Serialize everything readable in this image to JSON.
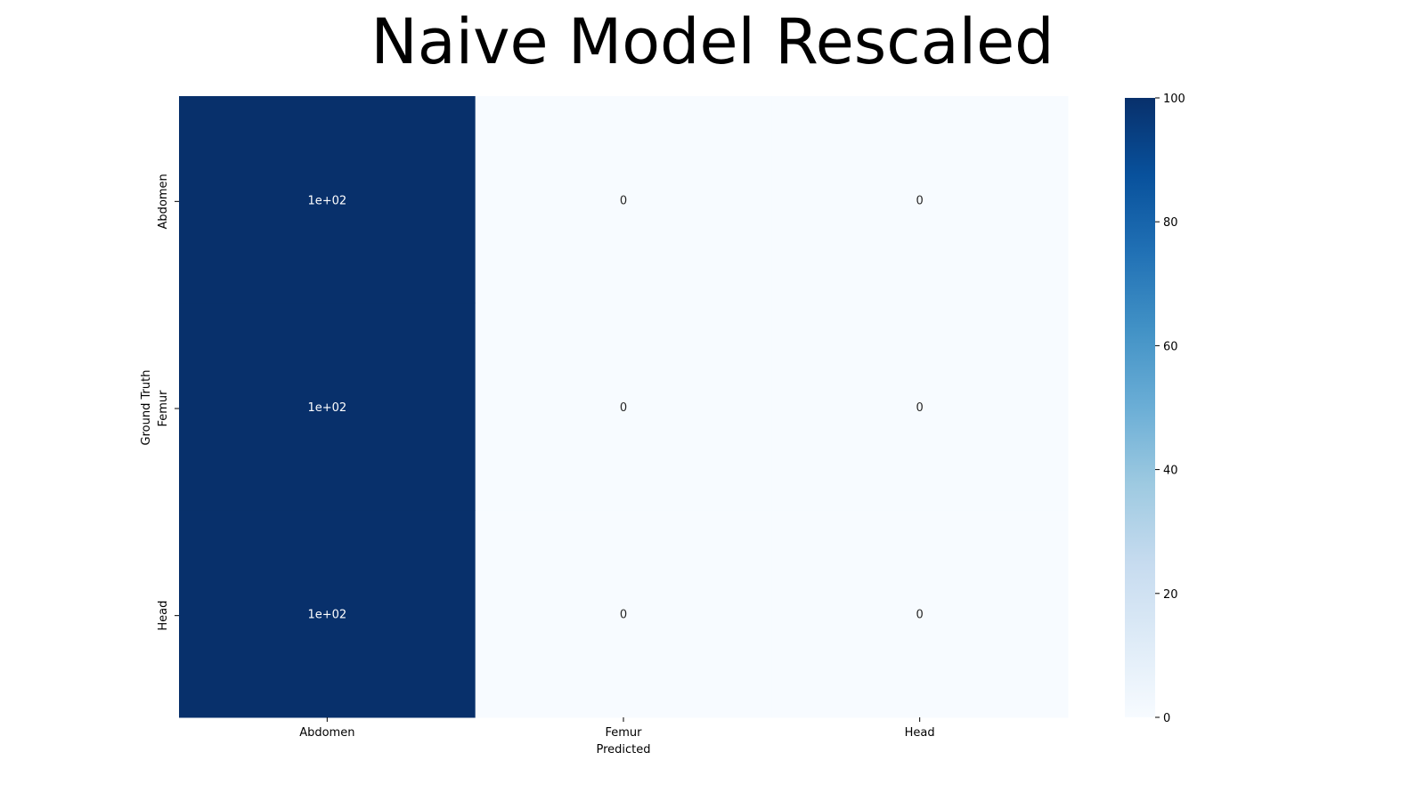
{
  "chart_data": {
    "type": "heatmap",
    "title": "Naive Model Rescaled",
    "xlabel": "Predicted",
    "ylabel": "Ground Truth",
    "x_categories": [
      "Abdomen",
      "Femur",
      "Head"
    ],
    "y_categories": [
      "Abdomen",
      "Femur",
      "Head"
    ],
    "values": [
      [
        100,
        0,
        0
      ],
      [
        100,
        0,
        0
      ],
      [
        100,
        0,
        0
      ]
    ],
    "cell_labels": [
      [
        "1e+02",
        "0",
        "0"
      ],
      [
        "1e+02",
        "0",
        "0"
      ],
      [
        "1e+02",
        "0",
        "0"
      ]
    ],
    "colormap": "Blues",
    "colormap_stops": [
      "#f7fbff",
      "#deebf7",
      "#c6dbef",
      "#9ecae1",
      "#6baed6",
      "#4292c6",
      "#2171b5",
      "#08519c",
      "#08306b"
    ],
    "colorbar": {
      "range": [
        0,
        100
      ],
      "ticks": [
        0,
        20,
        40,
        60,
        80,
        100
      ]
    }
  }
}
